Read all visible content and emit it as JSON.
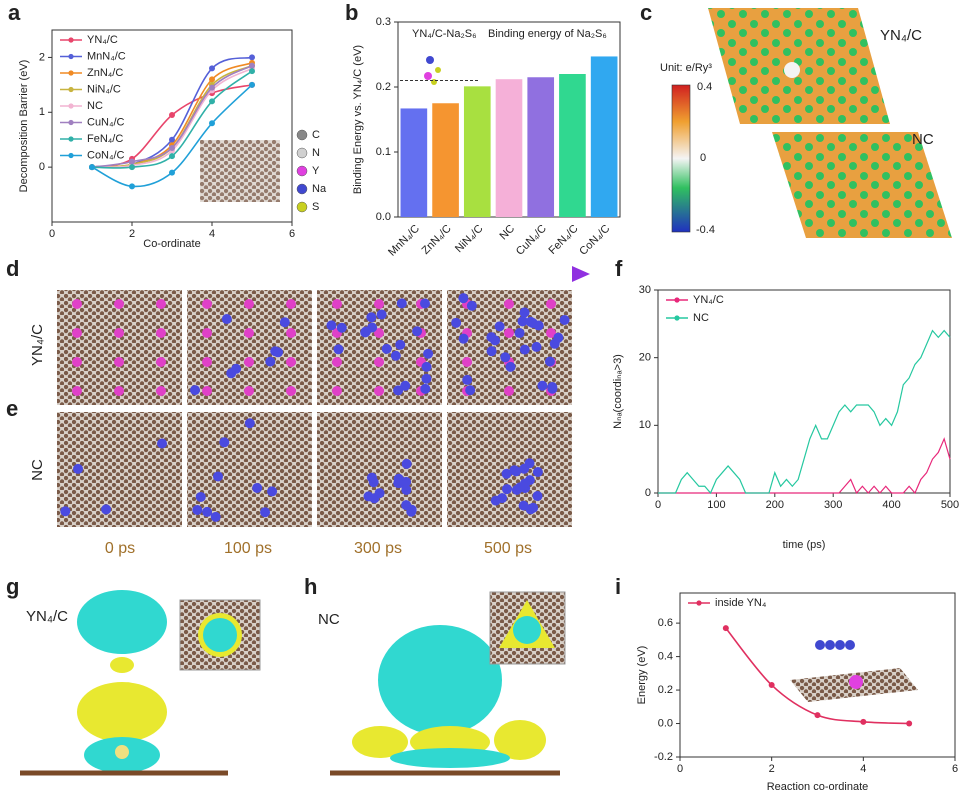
{
  "panel_labels": [
    "a",
    "b",
    "c",
    "d",
    "e",
    "f",
    "g",
    "h",
    "i"
  ],
  "chart_data": [
    {
      "type": "line",
      "xlabel": "Co-ordinate",
      "ylabel": "Decomposition Barrier (eV)",
      "x": [
        1,
        2,
        3,
        4,
        5
      ],
      "xlim": [
        0,
        6
      ],
      "xticks": [
        0,
        2,
        4,
        6
      ],
      "ylim": [
        -1,
        2.5
      ],
      "yticks": [
        0,
        1,
        2
      ],
      "legend": "upper left",
      "markers": true,
      "smooth": true,
      "series": [
        {
          "name": "YN₄/C",
          "color": "#e8456b",
          "values": [
            0,
            0.15,
            0.95,
            1.35,
            1.5
          ]
        },
        {
          "name": "MnN₄/C",
          "color": "#5560d8",
          "values": [
            0,
            0.05,
            0.5,
            1.8,
            2.0
          ]
        },
        {
          "name": "ZnN₄/C",
          "color": "#f08a24",
          "values": [
            0,
            0.05,
            0.4,
            1.6,
            1.9
          ]
        },
        {
          "name": "NiN₄/C",
          "color": "#c8b440",
          "values": [
            0,
            0.05,
            0.35,
            1.5,
            1.85
          ]
        },
        {
          "name": "NC",
          "color": "#f2b4d2",
          "values": [
            0,
            0.03,
            0.3,
            1.4,
            1.8
          ]
        },
        {
          "name": "CuN₄/C",
          "color": "#a080c0",
          "values": [
            0,
            0.1,
            0.35,
            1.45,
            1.85
          ]
        },
        {
          "name": "FeN₄/C",
          "color": "#30b0a8",
          "values": [
            0,
            0,
            0.2,
            1.2,
            1.75
          ]
        },
        {
          "name": "CoN₄/C",
          "color": "#20a0d8",
          "values": [
            0,
            -0.35,
            -0.1,
            0.8,
            1.5
          ]
        }
      ],
      "atom_legend": [
        {
          "label": "C",
          "color": "#888888"
        },
        {
          "label": "N",
          "color": "#d0d0d0"
        },
        {
          "label": "Y",
          "color": "#e040e0"
        },
        {
          "label": "Na",
          "color": "#4048d0"
        },
        {
          "label": "S",
          "color": "#c8d020"
        }
      ]
    },
    {
      "type": "bar",
      "ylabel": "Binding Energy vs. YN₄/C (eV)",
      "categories": [
        "MnN₄/C",
        "ZnN₄/C",
        "NiN₄/C",
        "NC",
        "CuN₄/C",
        "FeN₄/C",
        "CoN₄/C"
      ],
      "values": [
        0.167,
        0.175,
        0.201,
        0.212,
        0.215,
        0.22,
        0.247
      ],
      "colors": [
        "#6470f0",
        "#f59530",
        "#a8e040",
        "#f5b0d8",
        "#9070e0",
        "#30d890",
        "#30a8f0"
      ],
      "ylim": [
        0,
        0.3
      ],
      "yticks": [
        {
          "value": 0,
          "label": "0.0"
        },
        0.1,
        0.2,
        0.3
      ],
      "reference_line": 0.21,
      "inset_label": "YN₄/C-Na₂S₆",
      "annotation": "Binding energy of Na₂S₆"
    },
    {
      "type": "line",
      "xlabel": "time (ps)",
      "ylabel": "Nₙₐ(coordiₙₐ>3)",
      "x": [
        0,
        10,
        20,
        30,
        40,
        50,
        60,
        70,
        80,
        90,
        100,
        110,
        120,
        130,
        140,
        150,
        160,
        170,
        180,
        190,
        200,
        210,
        220,
        230,
        240,
        250,
        260,
        270,
        280,
        290,
        300,
        310,
        320,
        330,
        340,
        350,
        360,
        370,
        380,
        390,
        400,
        410,
        420,
        430,
        440,
        450,
        460,
        470,
        480,
        490,
        500
      ],
      "xlim": [
        0,
        500
      ],
      "xticks": [
        0,
        100,
        200,
        300,
        400,
        500
      ],
      "ylim": [
        0,
        30
      ],
      "yticks": [
        0,
        10,
        20,
        30
      ],
      "legend": "upper left",
      "markers": false,
      "smooth": false,
      "series": [
        {
          "name": "YN₄/C",
          "color": "#e8287a",
          "values": [
            0,
            0,
            0,
            0,
            0,
            0,
            0,
            0,
            0,
            0,
            0,
            0,
            0,
            0,
            0,
            0,
            0,
            0,
            0,
            0,
            0,
            0,
            0,
            0,
            0,
            0,
            0,
            0,
            0,
            0,
            0,
            0,
            1,
            2,
            0,
            1,
            0,
            1,
            0,
            1,
            0,
            0,
            0,
            1,
            0,
            2,
            3,
            5,
            6,
            8,
            5
          ]
        },
        {
          "name": "NC",
          "color": "#26c8a0",
          "values": [
            0,
            0,
            0,
            0,
            2,
            3,
            2,
            1,
            1,
            0,
            2,
            3,
            4,
            3,
            2,
            0,
            0,
            0,
            0,
            0,
            3,
            1,
            2,
            1,
            2,
            5,
            8,
            10,
            8,
            8,
            10,
            12,
            13,
            12,
            13,
            13,
            13,
            12,
            10,
            11,
            10,
            12,
            16,
            17,
            19,
            20,
            22,
            24,
            23,
            24,
            23
          ]
        }
      ]
    },
    {
      "type": "line",
      "xlabel": "Reaction co-ordinate",
      "ylabel": "Energy (eV)",
      "x": [
        1,
        2,
        3,
        4,
        5
      ],
      "xlim": [
        0,
        6
      ],
      "xticks": [
        0,
        2,
        4,
        6
      ],
      "ylim": [
        -0.2,
        0.78
      ],
      "yticks": [
        -0.2,
        {
          "value": 0,
          "label": "0.0"
        },
        0.2,
        0.4,
        0.6
      ],
      "legend": "upper left",
      "markers": true,
      "smooth": true,
      "series": [
        {
          "name": "inside YN₄",
          "color": "#e03060",
          "values": [
            0.57,
            0.23,
            0.05,
            0.01,
            0.0
          ]
        }
      ]
    }
  ],
  "panel_c": {
    "top_label": "YN₄/C",
    "bottom_label": "NC",
    "unit": "Unit: e/Ry³",
    "colorbar_labels": [
      "0.4",
      "0",
      "-0.4"
    ]
  },
  "panel_de": {
    "rows": [
      "YN₄/C",
      "NC"
    ],
    "times": [
      "0 ps",
      "100 ps",
      "300 ps",
      "500 ps"
    ]
  },
  "panel_g": {
    "label": "YN₄/C"
  },
  "panel_h": {
    "label": "NC"
  }
}
